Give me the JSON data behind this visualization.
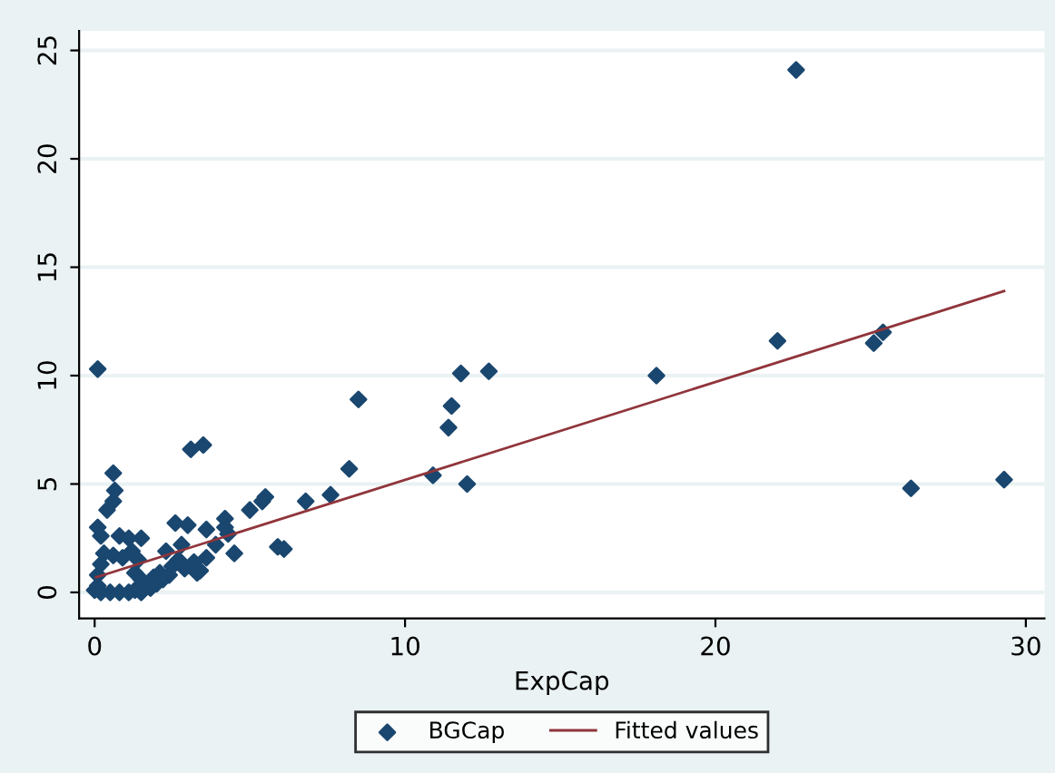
{
  "chart_data": {
    "type": "scatter",
    "xlabel": "ExpCap",
    "xlim": [
      -0.5,
      30.6
    ],
    "ylim": [
      -1.2,
      25.9
    ],
    "xticks": [
      0,
      10,
      20,
      30
    ],
    "yticks": [
      0,
      5,
      10,
      15,
      20,
      25
    ],
    "grid": "y",
    "legend": "bottom",
    "series": [
      {
        "name": "BGCap",
        "marker": "diamond",
        "color": "#1a476f",
        "x": [
          0.1,
          22.6,
          8.5,
          10.9,
          11.4,
          11.5,
          11.8,
          12.0,
          12.7,
          18.1,
          22.0,
          25.1,
          25.4,
          26.3,
          29.3,
          0.6,
          0.65,
          0.6,
          0.4,
          0.1,
          3.1,
          3.5,
          8.2,
          7.6,
          6.8,
          5.5,
          5.4,
          5.0,
          4.2,
          4.2,
          3.6,
          2.6,
          3.0,
          4.3,
          3.9,
          4.5,
          5.9,
          6.1,
          3.6,
          3.3,
          2.8,
          0.8,
          1.1,
          1.5,
          0.2,
          0.0,
          0.1,
          0.2,
          0.5,
          0.8,
          1.1,
          1.3,
          1.5,
          1.8,
          2.0,
          2.2,
          2.4,
          0.1,
          1.3,
          1.5,
          1.9,
          2.1,
          0.2,
          1.4,
          0.3,
          0.6,
          0.9,
          1.2,
          2.5,
          2.7,
          2.9,
          3.2,
          3.4,
          2.3
        ],
        "values": [
          10.3,
          24.1,
          8.9,
          5.4,
          7.6,
          8.6,
          10.1,
          5.0,
          10.2,
          10.0,
          11.6,
          11.5,
          12.0,
          4.8,
          5.2,
          5.5,
          4.7,
          4.2,
          3.8,
          3.0,
          6.6,
          6.8,
          5.7,
          4.5,
          4.2,
          4.4,
          4.2,
          3.8,
          3.4,
          3.0,
          2.9,
          3.2,
          3.1,
          2.7,
          2.2,
          1.8,
          2.1,
          2.0,
          1.6,
          0.9,
          2.2,
          2.6,
          2.5,
          2.5,
          2.6,
          0.1,
          0.3,
          0.0,
          0.0,
          0.0,
          0.0,
          0.1,
          0.0,
          0.2,
          0.4,
          0.6,
          0.8,
          0.8,
          0.9,
          0.6,
          0.7,
          0.9,
          1.3,
          1.5,
          1.8,
          1.7,
          1.6,
          1.9,
          1.2,
          1.5,
          1.1,
          1.4,
          1.0,
          1.9
        ]
      },
      {
        "name": "Fitted values",
        "type": "line",
        "marker": "none",
        "color": "#90353b",
        "x": [
          0.05,
          29.3
        ],
        "values": [
          0.7,
          13.9
        ]
      }
    ]
  }
}
